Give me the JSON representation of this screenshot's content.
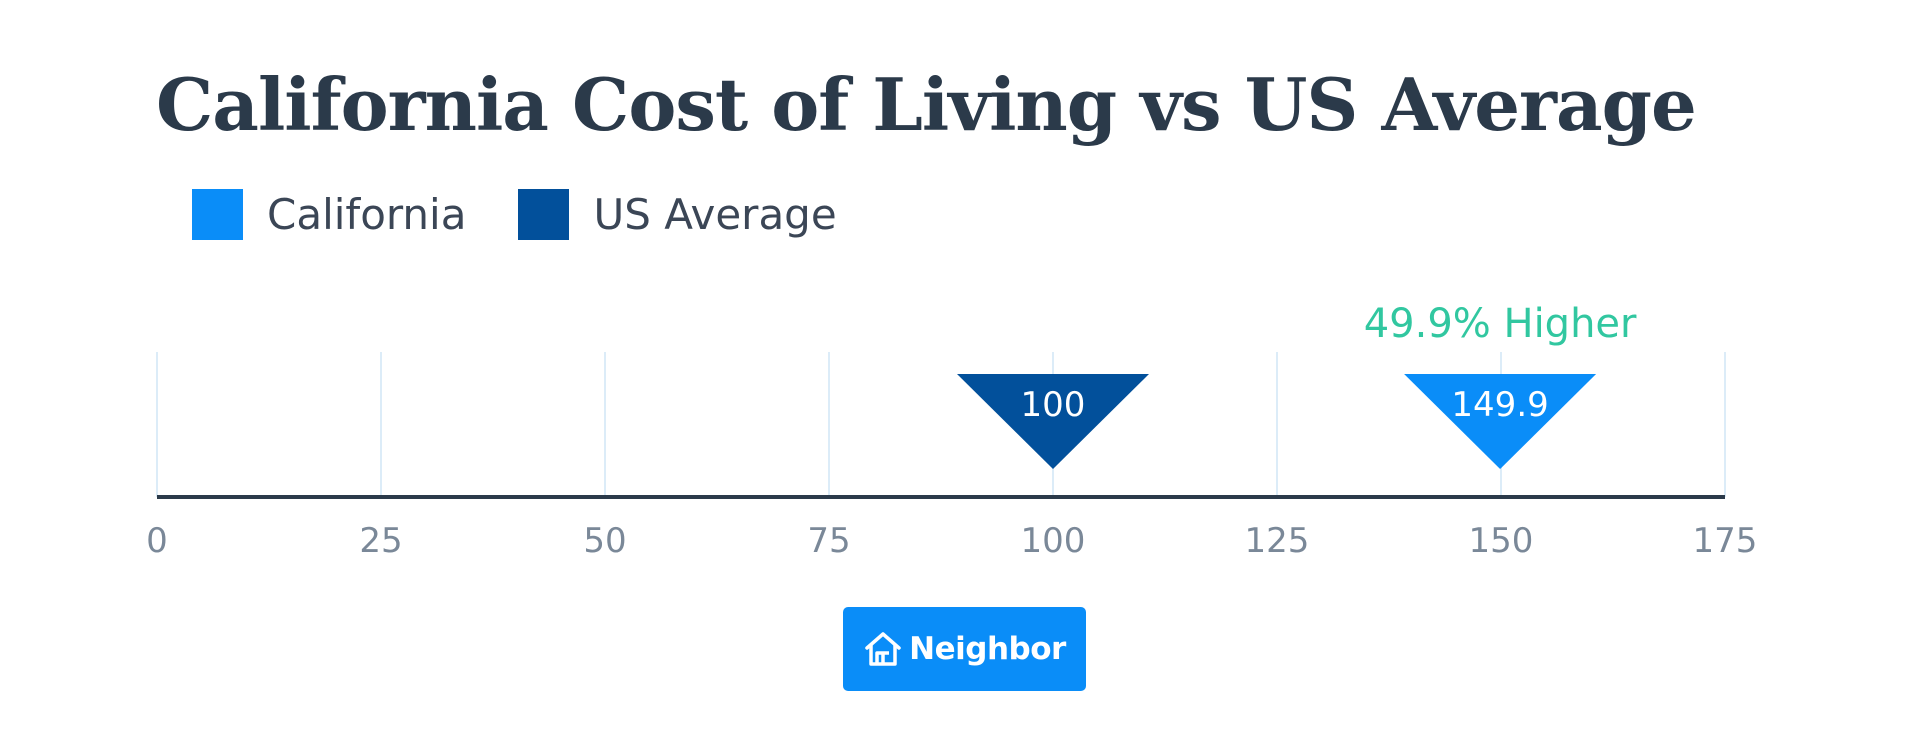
{
  "chart_data": {
    "type": "marker-scale",
    "title": "California Cost of Living vs US Average",
    "xlim": [
      0,
      175
    ],
    "ticks": [
      0,
      25,
      50,
      75,
      100,
      125,
      150,
      175
    ],
    "grid": true,
    "legend": {
      "position": "top-left"
    },
    "series": [
      {
        "name": "California",
        "value": 149.9,
        "label": "149.9",
        "color": "#0a8df8"
      },
      {
        "name": "US Average",
        "value": 100,
        "label": "100",
        "color": "#02509b"
      }
    ],
    "annotation": {
      "text": "49.9% Higher",
      "target": "California",
      "color": "#31c7a0"
    }
  },
  "branding": {
    "label": "Neighbor",
    "icon": "house-icon",
    "color": "#0a8df8"
  },
  "colors": {
    "title": "#2b3a4a",
    "axis": "#2b3a4a",
    "tick_label": "#7a8898",
    "grid": "#dcecf8"
  }
}
